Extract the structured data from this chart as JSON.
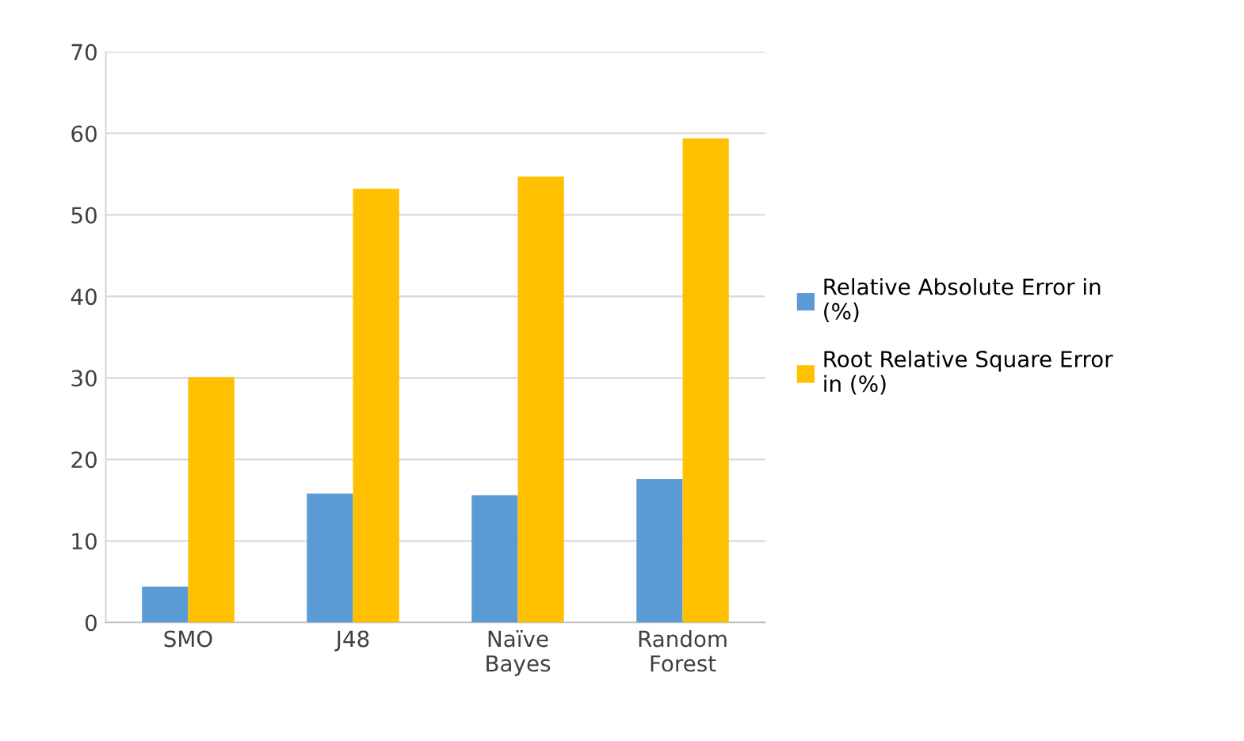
{
  "chart_data": {
    "type": "bar",
    "categories": [
      "SMO",
      "J48",
      "Naïve Bayes",
      "Random Forest"
    ],
    "series": [
      {
        "name": "Relative Absolute Error in (%)",
        "color": "#5b9bd5",
        "values": [
          4.4,
          15.8,
          15.6,
          17.6
        ]
      },
      {
        "name": "Root Relative Square Error in (%)",
        "color": "#ffc000",
        "values": [
          30.1,
          53.2,
          54.7,
          59.4
        ]
      }
    ],
    "ylim": [
      0,
      70
    ],
    "yticks": [
      0,
      10,
      20,
      30,
      40,
      50,
      60,
      70
    ],
    "grid": "y",
    "legend": "right"
  }
}
